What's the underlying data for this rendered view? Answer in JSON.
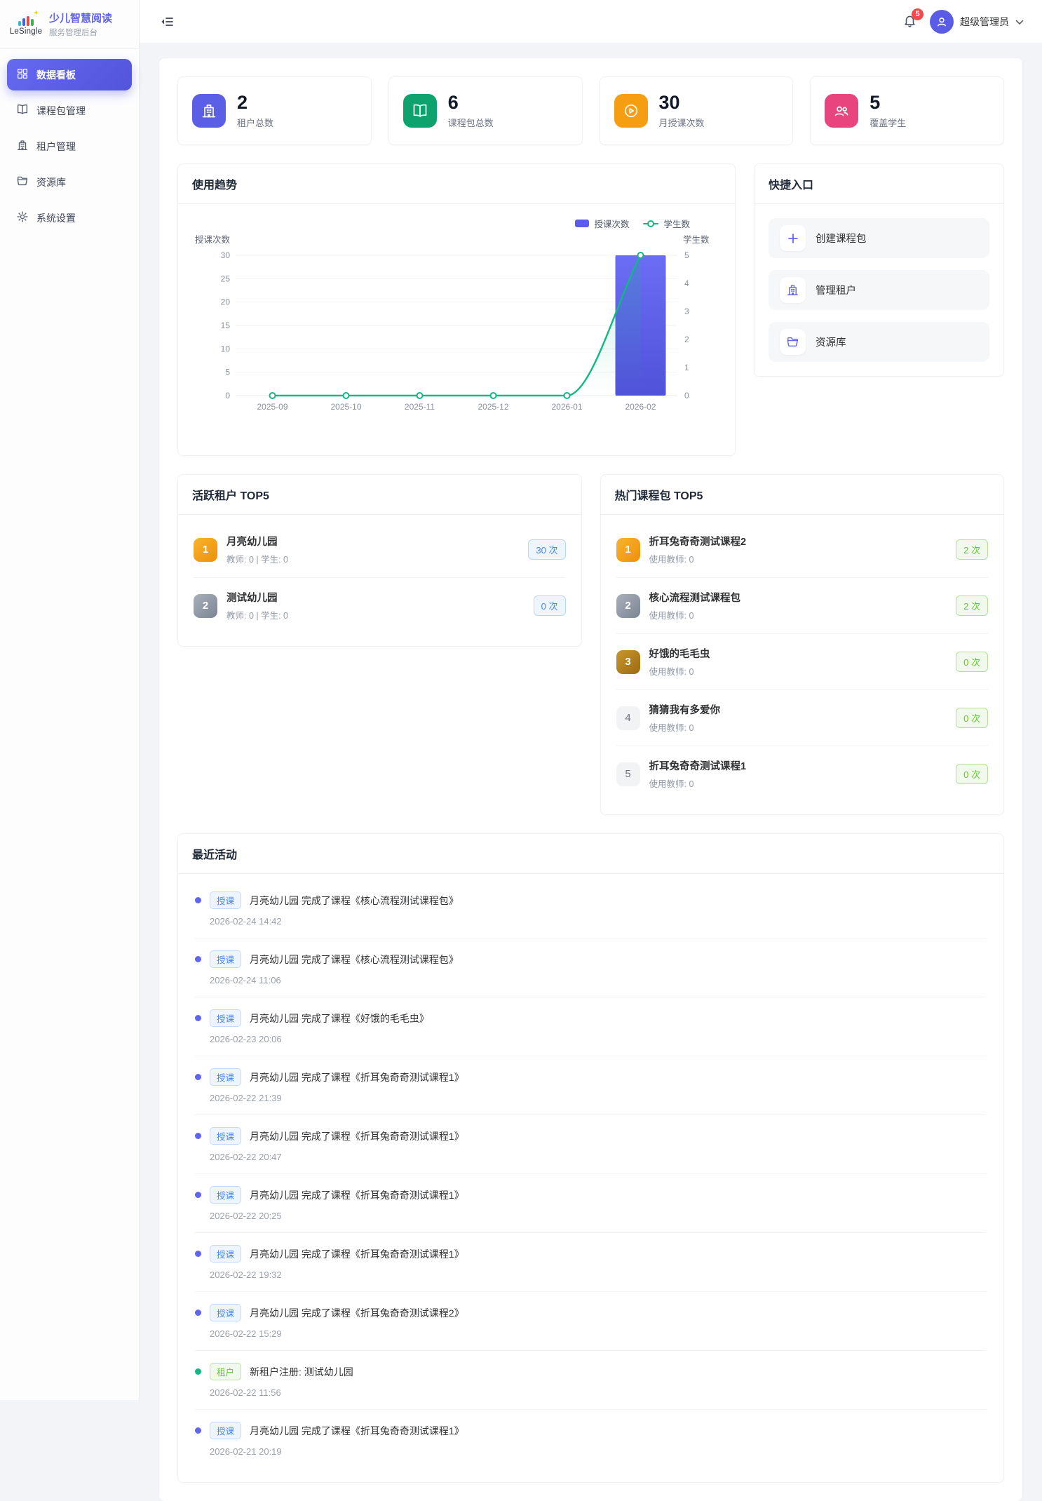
{
  "brand": {
    "logo_word": "LeSingle",
    "title": "少儿智慧阅读",
    "subtitle": "服务管理后台"
  },
  "sidebar": {
    "items": [
      {
        "label": "数据看板",
        "icon": "dashboard-icon",
        "active": true
      },
      {
        "label": "课程包管理",
        "icon": "book-icon",
        "active": false
      },
      {
        "label": "租户管理",
        "icon": "building-icon",
        "active": false
      },
      {
        "label": "资源库",
        "icon": "folder-icon",
        "active": false
      },
      {
        "label": "系统设置",
        "icon": "gear-icon",
        "active": false
      }
    ]
  },
  "header": {
    "notification_count": "5",
    "user_name": "超级管理员"
  },
  "stats": [
    {
      "value": "2",
      "label": "租户总数",
      "icon": "building-icon",
      "color": "#5b5fe6"
    },
    {
      "value": "6",
      "label": "课程包总数",
      "icon": "book-icon",
      "color": "#0ea36e"
    },
    {
      "value": "30",
      "label": "月授课次数",
      "icon": "play-circle-icon",
      "color": "#f59e12"
    },
    {
      "value": "5",
      "label": "覆盖学生",
      "icon": "students-icon",
      "color": "#e8457e"
    }
  ],
  "chart_card": {
    "title": "使用趋势"
  },
  "chart_data": {
    "type": "bar",
    "title": "使用趋势",
    "categories": [
      "2025-09",
      "2025-10",
      "2025-11",
      "2025-12",
      "2026-01",
      "2026-02"
    ],
    "series": [
      {
        "name": "授课次数",
        "type": "bar",
        "axis": "left",
        "color": "#5b5ce6",
        "values": [
          0,
          0,
          0,
          0,
          0,
          30
        ]
      },
      {
        "name": "学生数",
        "type": "line",
        "axis": "right",
        "color": "#10b981",
        "values": [
          0,
          0,
          0,
          0,
          0,
          5
        ]
      }
    ],
    "left_axis": {
      "name": "授课次数",
      "min": 0,
      "max": 30,
      "ticks": [
        0,
        5,
        10,
        15,
        20,
        25,
        30
      ]
    },
    "right_axis": {
      "name": "学生数",
      "min": 0,
      "max": 5,
      "ticks": [
        0,
        1,
        2,
        3,
        4,
        5
      ]
    },
    "legend_position": "top-right",
    "grid": true
  },
  "quick_entry": {
    "title": "快捷入口",
    "items_labels": {
      "create": "创建课程包",
      "tenants": "管理租户",
      "resources": "资源库"
    }
  },
  "active_tenants": {
    "title": "活跃租户 TOP5",
    "items": [
      {
        "rank": "1",
        "name": "月亮幼儿园",
        "meta": "教师: 0 | 学生: 0",
        "count": "30 次"
      },
      {
        "rank": "2",
        "name": "测试幼儿园",
        "meta": "教师: 0 | 学生: 0",
        "count": "0 次"
      }
    ]
  },
  "hot_packages": {
    "title": "热门课程包 TOP5",
    "items": [
      {
        "rank": "1",
        "name": "折耳兔奇奇测试课程2",
        "meta": "使用教师: 0",
        "count": "2 次"
      },
      {
        "rank": "2",
        "name": "核心流程测试课程包",
        "meta": "使用教师: 0",
        "count": "2 次"
      },
      {
        "rank": "3",
        "name": "好饿的毛毛虫",
        "meta": "使用教师: 0",
        "count": "0 次"
      },
      {
        "rank": "4",
        "name": "猜猜我有多爱你",
        "meta": "使用教师: 0",
        "count": "0 次"
      },
      {
        "rank": "5",
        "name": "折耳兔奇奇测试课程1",
        "meta": "使用教师: 0",
        "count": "0 次"
      }
    ]
  },
  "activities": {
    "title": "最近活动",
    "items": [
      {
        "type": "course",
        "tag": "授课",
        "text": "月亮幼儿园 完成了课程《核心流程测试课程包》",
        "time": "2026-02-24 14:42"
      },
      {
        "type": "course",
        "tag": "授课",
        "text": "月亮幼儿园 完成了课程《核心流程测试课程包》",
        "time": "2026-02-24 11:06"
      },
      {
        "type": "course",
        "tag": "授课",
        "text": "月亮幼儿园 完成了课程《好饿的毛毛虫》",
        "time": "2026-02-23 20:06"
      },
      {
        "type": "course",
        "tag": "授课",
        "text": "月亮幼儿园 完成了课程《折耳兔奇奇测试课程1》",
        "time": "2026-02-22 21:39"
      },
      {
        "type": "course",
        "tag": "授课",
        "text": "月亮幼儿园 完成了课程《折耳兔奇奇测试课程1》",
        "time": "2026-02-22 20:47"
      },
      {
        "type": "course",
        "tag": "授课",
        "text": "月亮幼儿园 完成了课程《折耳兔奇奇测试课程1》",
        "time": "2026-02-22 20:25"
      },
      {
        "type": "course",
        "tag": "授课",
        "text": "月亮幼儿园 完成了课程《折耳兔奇奇测试课程1》",
        "time": "2026-02-22 19:32"
      },
      {
        "type": "course",
        "tag": "授课",
        "text": "月亮幼儿园 完成了课程《折耳兔奇奇测试课程2》",
        "time": "2026-02-22 15:29"
      },
      {
        "type": "tenant",
        "tag": "租户",
        "text": "新租户注册: 测试幼儿园",
        "time": "2026-02-22 11:56"
      },
      {
        "type": "course",
        "tag": "授课",
        "text": "月亮幼儿园 完成了课程《折耳兔奇奇测试课程1》",
        "time": "2026-02-21 20:19"
      }
    ]
  }
}
